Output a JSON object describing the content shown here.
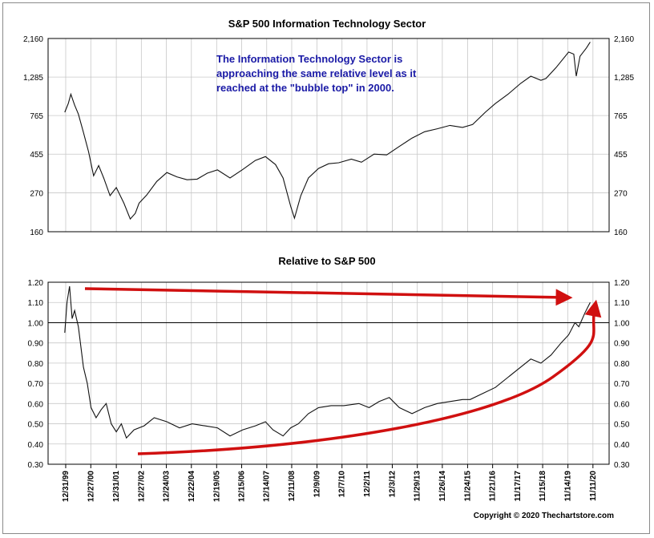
{
  "copyright": "Copyright © 2020 Thechartstore.com",
  "colors": {
    "line": "#111111",
    "grid": "#c8c8c8",
    "arrow": "#d01010",
    "annotation": "#1a1aa6"
  },
  "chart_data": [
    {
      "type": "line",
      "title": "S&P 500 Information Technology Sector",
      "scale": "log",
      "yticks": [
        160,
        270,
        455,
        765,
        1285,
        2160
      ],
      "ytick_labels": [
        "160",
        "270",
        "455",
        "765",
        "1,285",
        "2,160"
      ],
      "ylim": [
        160,
        2160
      ],
      "grid": true,
      "annotation": [
        "The Information Technology Sector is",
        "approaching the same relative level as it",
        "reached at the \"bubble top\" in 2000."
      ],
      "x": [
        1999.96,
        2000.1,
        2000.2,
        2000.35,
        2000.5,
        2000.7,
        2000.9,
        2001.1,
        2001.3,
        2001.5,
        2001.75,
        2002.0,
        2002.3,
        2002.55,
        2002.75,
        2002.9,
        2003.2,
        2003.6,
        2004.0,
        2004.4,
        2004.8,
        2005.2,
        2005.6,
        2006.0,
        2006.5,
        2007.0,
        2007.5,
        2007.9,
        2008.3,
        2008.6,
        2008.9,
        2009.05,
        2009.3,
        2009.6,
        2010.0,
        2010.4,
        2010.8,
        2011.3,
        2011.7,
        2012.2,
        2012.7,
        2013.2,
        2013.7,
        2014.2,
        2014.7,
        2015.2,
        2015.7,
        2016.1,
        2016.6,
        2017.0,
        2017.5,
        2018.0,
        2018.4,
        2018.8,
        2019.0,
        2019.4,
        2019.9,
        2020.1,
        2020.2,
        2020.35,
        2020.6,
        2020.75
      ],
      "values": [
        800,
        900,
        1020,
        880,
        780,
        610,
        470,
        340,
        390,
        330,
        260,
        290,
        235,
        190,
        205,
        235,
        262,
        315,
        355,
        335,
        322,
        325,
        352,
        368,
        330,
        370,
        418,
        440,
        395,
        330,
        225,
        192,
        260,
        330,
        375,
        400,
        405,
        425,
        408,
        455,
        450,
        505,
        565,
        615,
        640,
        670,
        652,
        678,
        800,
        900,
        1020,
        1180,
        1300,
        1230,
        1260,
        1460,
        1800,
        1750,
        1300,
        1700,
        1900,
        2060
      ]
    },
    {
      "type": "line",
      "title": "Relative to S&P 500",
      "yticks": [
        0.3,
        0.4,
        0.5,
        0.6,
        0.7,
        0.8,
        0.9,
        1.0,
        1.1,
        1.2
      ],
      "ytick_labels": [
        "0.30",
        "0.40",
        "0.50",
        "0.60",
        "0.70",
        "0.80",
        "0.90",
        "1.00",
        "1.10",
        "1.20"
      ],
      "ylim": [
        0.3,
        1.2
      ],
      "reference_line": 1.0,
      "grid": true,
      "x": [
        1999.96,
        2000.05,
        2000.15,
        2000.25,
        2000.35,
        2000.5,
        2000.7,
        2000.85,
        2001.0,
        2001.2,
        2001.4,
        2001.6,
        2001.8,
        2002.0,
        2002.2,
        2002.4,
        2002.7,
        2003.1,
        2003.5,
        2004.0,
        2004.5,
        2005.0,
        2005.5,
        2006.0,
        2006.5,
        2007.0,
        2007.5,
        2007.9,
        2008.2,
        2008.6,
        2008.9,
        2009.2,
        2009.6,
        2010.0,
        2010.5,
        2011.0,
        2011.6,
        2012.0,
        2012.4,
        2012.8,
        2013.2,
        2013.7,
        2014.2,
        2014.7,
        2015.2,
        2015.7,
        2016.0,
        2016.5,
        2017.0,
        2017.5,
        2018.0,
        2018.4,
        2018.8,
        2019.2,
        2019.6,
        2019.9,
        2020.15,
        2020.3,
        2020.55,
        2020.75
      ],
      "values": [
        0.95,
        1.1,
        1.18,
        1.02,
        1.06,
        0.98,
        0.78,
        0.7,
        0.58,
        0.53,
        0.57,
        0.6,
        0.5,
        0.46,
        0.5,
        0.43,
        0.47,
        0.49,
        0.53,
        0.51,
        0.48,
        0.5,
        0.49,
        0.48,
        0.44,
        0.47,
        0.49,
        0.51,
        0.47,
        0.44,
        0.48,
        0.5,
        0.55,
        0.58,
        0.59,
        0.59,
        0.6,
        0.58,
        0.61,
        0.63,
        0.58,
        0.55,
        0.58,
        0.6,
        0.61,
        0.62,
        0.62,
        0.65,
        0.68,
        0.73,
        0.78,
        0.82,
        0.8,
        0.84,
        0.9,
        0.94,
        1.0,
        0.98,
        1.05,
        1.1
      ]
    }
  ],
  "xaxis": {
    "ticks": [
      {
        "label": "12/31/99",
        "x": 1999.997
      },
      {
        "label": "12/27/00",
        "x": 2000.99
      },
      {
        "label": "12/31/01",
        "x": 2002.0
      },
      {
        "label": "12/27/02",
        "x": 2002.99
      },
      {
        "label": "12/24/03",
        "x": 2003.98
      },
      {
        "label": "12/22/04",
        "x": 2004.97
      },
      {
        "label": "12/19/05",
        "x": 2005.97
      },
      {
        "label": "12/15/06",
        "x": 2006.96
      },
      {
        "label": "12/14/07",
        "x": 2007.95
      },
      {
        "label": "12/11/08",
        "x": 2008.94
      },
      {
        "label": "12/9/09",
        "x": 2009.94
      },
      {
        "label": "12/7/10",
        "x": 2010.93
      },
      {
        "label": "12/2/11",
        "x": 2011.92
      },
      {
        "label": "12/3/12",
        "x": 2012.92
      },
      {
        "label": "11/29/13",
        "x": 2013.91
      },
      {
        "label": "11/26/14",
        "x": 2014.9
      },
      {
        "label": "11/24/15",
        "x": 2015.9
      },
      {
        "label": "11/21/16",
        "x": 2016.89
      },
      {
        "label": "11/17/17",
        "x": 2017.88
      },
      {
        "label": "11/15/18",
        "x": 2018.87
      },
      {
        "label": "11/14/19",
        "x": 2019.87
      },
      {
        "label": "11/11/20",
        "x": 2020.86
      }
    ]
  }
}
